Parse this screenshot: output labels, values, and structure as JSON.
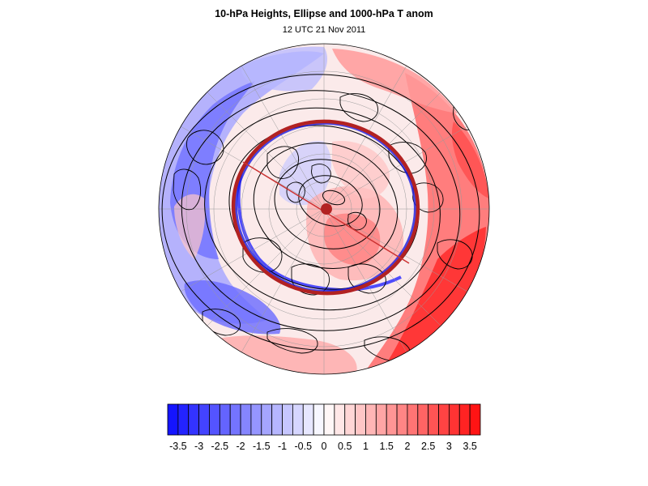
{
  "title": "10-hPa Heights, Ellipse and 1000-hPa T anom",
  "subtitle": "12 UTC 21 Nov 2011",
  "colors": {
    "negative_max": "#1a1aff",
    "positive_max": "#ff1a1a",
    "ellipse": "#b22222",
    "ellipse_shadow": "#1a1adf"
  },
  "colorbar": {
    "levels": [
      -3.75,
      -3.5,
      -3.25,
      -3,
      -2.75,
      -2.5,
      -2.25,
      -2,
      -1.75,
      -1.5,
      -1.25,
      -1,
      -0.75,
      -0.5,
      -0.25,
      0,
      0.25,
      0.5,
      0.75,
      1,
      1.25,
      1.5,
      1.75,
      2,
      2.25,
      2.5,
      2.75,
      3,
      3.25,
      3.5,
      3.75
    ],
    "tick_labels": [
      "-3.5",
      "-3",
      "-2.5",
      "-2",
      "-1.5",
      "-1",
      "-0.5",
      "0",
      "0.5",
      "1",
      "1.5",
      "2",
      "2.5",
      "3",
      "3.5"
    ]
  }
}
